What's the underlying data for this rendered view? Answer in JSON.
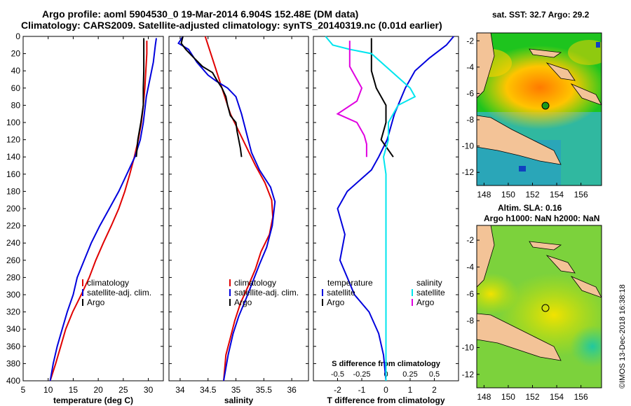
{
  "title_line1": "Argo profile: aoml 5904530_0 19-Mar-2014 6.904S 152.48E (DM data)",
  "title_line2": "Climatology: CARS2009. Satellite-adjusted climatology: synTS_20140319.nc (0.01d earlier)",
  "credit": "©IMOS 13-Dec-2018 16:38:18",
  "colors": {
    "climatology": "#e00000",
    "satellite": "#0000dd",
    "argo": "#000000",
    "sal_sat": "#00e5ee",
    "sal_argo": "#e000e0"
  },
  "map1": {
    "title": "sat. SST: 32.7 Argo: 29.2"
  },
  "map2": {
    "title_line1": "Altim. SLA: 0.16",
    "title_line2": "Argo h1000: NaN h2000: NaN"
  },
  "chart_data": [
    {
      "type": "line",
      "xlabel": "temperature (deg C)",
      "xlim": [
        5,
        33
      ],
      "xticks": [
        5,
        10,
        15,
        20,
        25,
        30
      ],
      "ylim": [
        0,
        400
      ],
      "yticks": [
        0,
        20,
        40,
        60,
        80,
        100,
        120,
        140,
        160,
        180,
        200,
        220,
        240,
        260,
        280,
        300,
        320,
        340,
        360,
        380,
        400
      ],
      "legend": [
        "climatology",
        "satellite-adj. clim.",
        "Argo"
      ],
      "series": [
        {
          "name": "climatology",
          "points": [
            [
              29.7,
              5
            ],
            [
              29.7,
              20
            ],
            [
              29.5,
              40
            ],
            [
              29.3,
              60
            ],
            [
              29.0,
              80
            ],
            [
              28.6,
              100
            ],
            [
              28.0,
              120
            ],
            [
              27.2,
              140
            ],
            [
              26.3,
              160
            ],
            [
              25.3,
              180
            ],
            [
              24.1,
              200
            ],
            [
              22.6,
              220
            ],
            [
              21.0,
              240
            ],
            [
              19.5,
              260
            ],
            [
              18.2,
              280
            ],
            [
              16.6,
              300
            ],
            [
              14.9,
              320
            ],
            [
              13.5,
              340
            ],
            [
              12.5,
              360
            ],
            [
              11.5,
              380
            ],
            [
              10.4,
              400
            ]
          ]
        },
        {
          "name": "satellite-adj. clim.",
          "points": [
            [
              31.6,
              2
            ],
            [
              31.4,
              10
            ],
            [
              31.0,
              30
            ],
            [
              30.3,
              50
            ],
            [
              29.6,
              70
            ],
            [
              29.0,
              100
            ],
            [
              28.4,
              120
            ],
            [
              27.3,
              140
            ],
            [
              25.7,
              160
            ],
            [
              24.1,
              180
            ],
            [
              22.2,
              200
            ],
            [
              20.3,
              220
            ],
            [
              18.6,
              240
            ],
            [
              17.2,
              260
            ],
            [
              15.8,
              280
            ],
            [
              15.0,
              300
            ],
            [
              13.8,
              320
            ],
            [
              12.8,
              340
            ],
            [
              11.8,
              360
            ],
            [
              11.0,
              380
            ],
            [
              10.4,
              400
            ]
          ]
        },
        {
          "name": "Argo",
          "points": [
            [
              29.1,
              2
            ],
            [
              29.1,
              20
            ],
            [
              29.1,
              40
            ],
            [
              29.0,
              60
            ],
            [
              29.0,
              80
            ],
            [
              28.5,
              100
            ],
            [
              27.9,
              120
            ],
            [
              27.6,
              140
            ]
          ]
        }
      ]
    },
    {
      "type": "line",
      "xlabel": "salinity",
      "xlim": [
        33.8,
        36.3
      ],
      "xticks": [
        34,
        34.5,
        35,
        35.5,
        36
      ],
      "ylim": [
        0,
        400
      ],
      "legend": [
        "climatology",
        "satellite-adj. clim.",
        "Argo"
      ],
      "series": [
        {
          "name": "climatology",
          "points": [
            [
              34.45,
              0
            ],
            [
              34.5,
              10
            ],
            [
              34.6,
              30
            ],
            [
              34.7,
              50
            ],
            [
              34.8,
              70
            ],
            [
              34.9,
              90
            ],
            [
              35.05,
              110
            ],
            [
              35.2,
              130
            ],
            [
              35.35,
              150
            ],
            [
              35.52,
              170
            ],
            [
              35.64,
              190
            ],
            [
              35.66,
              210
            ],
            [
              35.6,
              230
            ],
            [
              35.45,
              250
            ],
            [
              35.35,
              270
            ],
            [
              35.22,
              290
            ],
            [
              35.08,
              310
            ],
            [
              34.98,
              330
            ],
            [
              34.9,
              350
            ],
            [
              34.82,
              370
            ],
            [
              34.78,
              400
            ]
          ]
        },
        {
          "name": "satellite-adj. clim.",
          "points": [
            [
              34.05,
              0
            ],
            [
              33.97,
              8
            ],
            [
              34.15,
              15
            ],
            [
              34.3,
              30
            ],
            [
              34.5,
              45
            ],
            [
              34.65,
              52
            ],
            [
              34.85,
              60
            ],
            [
              35.0,
              70
            ],
            [
              35.1,
              90
            ],
            [
              35.2,
              115
            ],
            [
              35.28,
              135
            ],
            [
              35.42,
              155
            ],
            [
              35.62,
              175
            ],
            [
              35.7,
              192
            ],
            [
              35.65,
              220
            ],
            [
              35.55,
              245
            ],
            [
              35.42,
              265
            ],
            [
              35.3,
              285
            ],
            [
              35.18,
              305
            ],
            [
              35.05,
              325
            ],
            [
              34.95,
              345
            ],
            [
              34.86,
              370
            ],
            [
              34.78,
              400
            ]
          ]
        },
        {
          "name": "Argo",
          "points": [
            [
              34.05,
              0
            ],
            [
              34.02,
              8
            ],
            [
              34.1,
              15
            ],
            [
              34.25,
              25
            ],
            [
              34.4,
              35
            ],
            [
              34.58,
              42
            ],
            [
              34.65,
              50
            ],
            [
              34.75,
              60
            ],
            [
              34.82,
              70
            ],
            [
              34.85,
              80
            ],
            [
              34.9,
              92
            ],
            [
              35.0,
              100
            ],
            [
              35.02,
              110
            ],
            [
              35.05,
              120
            ],
            [
              35.08,
              130
            ],
            [
              35.1,
              140
            ]
          ]
        }
      ]
    },
    {
      "type": "line",
      "xlabel": "T difference from climatology",
      "xlabel_top": "S difference from climatology",
      "xlim": [
        -3,
        3
      ],
      "xticks": [
        -2,
        -1,
        0,
        1,
        2
      ],
      "xticks_s": [
        "-0.5",
        "-0.25",
        "0",
        "0.25",
        "0.5"
      ],
      "ylim": [
        0,
        400
      ],
      "legend_left": [
        "temperature",
        "satellite",
        "Argo"
      ],
      "legend_right": [
        "salinity",
        "satellite",
        "Argo"
      ],
      "series": [
        {
          "name": "temperature satellite",
          "points": [
            [
              2.8,
              0
            ],
            [
              2.5,
              10
            ],
            [
              1.8,
              25
            ],
            [
              1.2,
              40
            ],
            [
              0.8,
              60
            ],
            [
              0.35,
              90
            ],
            [
              0.05,
              120
            ],
            [
              -0.3,
              140
            ],
            [
              -0.6,
              155
            ],
            [
              -1.6,
              180
            ],
            [
              -2.0,
              200
            ],
            [
              -1.7,
              230
            ],
            [
              -1.9,
              260
            ],
            [
              -1.6,
              280
            ],
            [
              -1.3,
              300
            ],
            [
              -0.7,
              320
            ],
            [
              -0.3,
              345
            ],
            [
              -0.1,
              370
            ],
            [
              0.0,
              400
            ]
          ]
        },
        {
          "name": "temperature Argo",
          "points": [
            [
              -0.6,
              2
            ],
            [
              -0.6,
              20
            ],
            [
              -0.6,
              40
            ],
            [
              -0.4,
              60
            ],
            [
              0.0,
              80
            ],
            [
              0.0,
              100
            ],
            [
              -0.2,
              120
            ],
            [
              0.3,
              140
            ]
          ]
        },
        {
          "name": "salinity satellite",
          "points": [
            [
              -2.5,
              0
            ],
            [
              -2.2,
              10
            ],
            [
              -1.5,
              15
            ],
            [
              -0.6,
              20
            ],
            [
              1.0,
              60
            ],
            [
              1.2,
              70
            ],
            [
              0.5,
              80
            ],
            [
              0.1,
              100
            ],
            [
              0.1,
              120
            ],
            [
              -0.1,
              140
            ],
            [
              0.0,
              160
            ],
            [
              0.0,
              180
            ],
            [
              0.0,
              200
            ],
            [
              0.0,
              220
            ],
            [
              0.0,
              240
            ],
            [
              0.0,
              260
            ],
            [
              0.0,
              280
            ],
            [
              0.0,
              300
            ],
            [
              0.0,
              320
            ],
            [
              0.0,
              340
            ],
            [
              0.0,
              360
            ],
            [
              0.0,
              380
            ],
            [
              0.0,
              400
            ]
          ]
        },
        {
          "name": "salinity Argo",
          "points": [
            [
              -1.5,
              5
            ],
            [
              -1.5,
              20
            ],
            [
              -1.5,
              35
            ],
            [
              -1.0,
              60
            ],
            [
              -1.2,
              75
            ],
            [
              -2.0,
              90
            ],
            [
              -1.2,
              100
            ],
            [
              -0.9,
              115
            ],
            [
              -0.8,
              125
            ],
            [
              -0.8,
              140
            ]
          ]
        }
      ]
    }
  ],
  "map_axes": {
    "xticks": [
      148,
      150,
      152,
      154,
      156
    ],
    "yticks": [
      -2,
      -4,
      -6,
      -8,
      -10,
      -12
    ]
  }
}
